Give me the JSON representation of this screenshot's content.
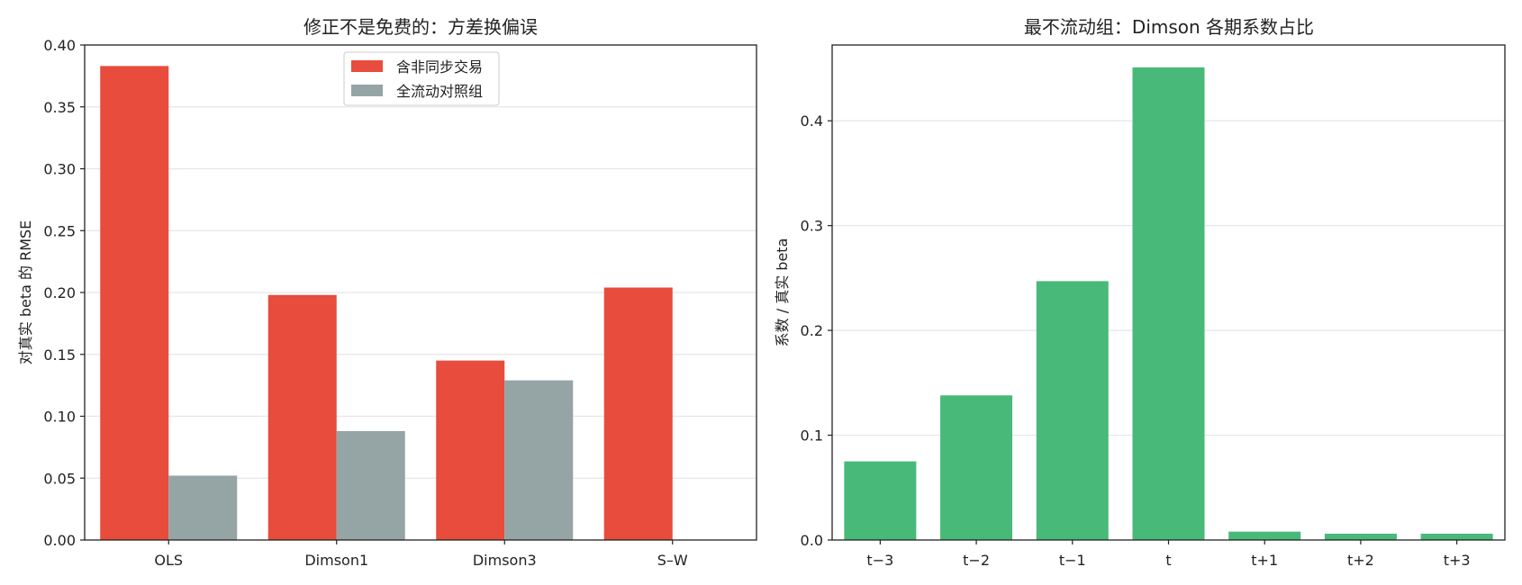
{
  "chart_data": [
    {
      "type": "bar",
      "title": "修正不是免费的：方差换偏误",
      "xlabel": "",
      "ylabel": "对真实 beta 的 RMSE",
      "categories": [
        "OLS",
        "Dimson1",
        "Dimson3",
        "S–W"
      ],
      "series": [
        {
          "name": "含非同步交易",
          "color": "#e74c3c",
          "values": [
            0.383,
            0.198,
            0.145,
            0.204
          ]
        },
        {
          "name": "全流动对照组",
          "color": "#95a5a6",
          "values": [
            0.052,
            0.088,
            0.129,
            null
          ]
        }
      ],
      "ylim": [
        0,
        0.4
      ],
      "yticks": [
        "0.00",
        "0.05",
        "0.10",
        "0.15",
        "0.20",
        "0.25",
        "0.30",
        "0.35",
        "0.40"
      ],
      "grid": "y",
      "legend": "top-center"
    },
    {
      "type": "bar",
      "title": "最不流动组：Dimson 各期系数占比",
      "xlabel": "",
      "ylabel": "系数 / 真实 beta",
      "categories": [
        "t−3",
        "t−2",
        "t−1",
        "t",
        "t+1",
        "t+2",
        "t+3"
      ],
      "series": [
        {
          "color": "#48b978",
          "values": [
            0.075,
            0.138,
            0.247,
            0.451,
            0.008,
            0.006,
            0.006
          ]
        }
      ],
      "ylim": [
        0,
        0.45
      ],
      "yticks": [
        "0.0",
        "0.1",
        "0.2",
        "0.3",
        "0.4"
      ],
      "grid": "y",
      "legend": "none"
    }
  ]
}
